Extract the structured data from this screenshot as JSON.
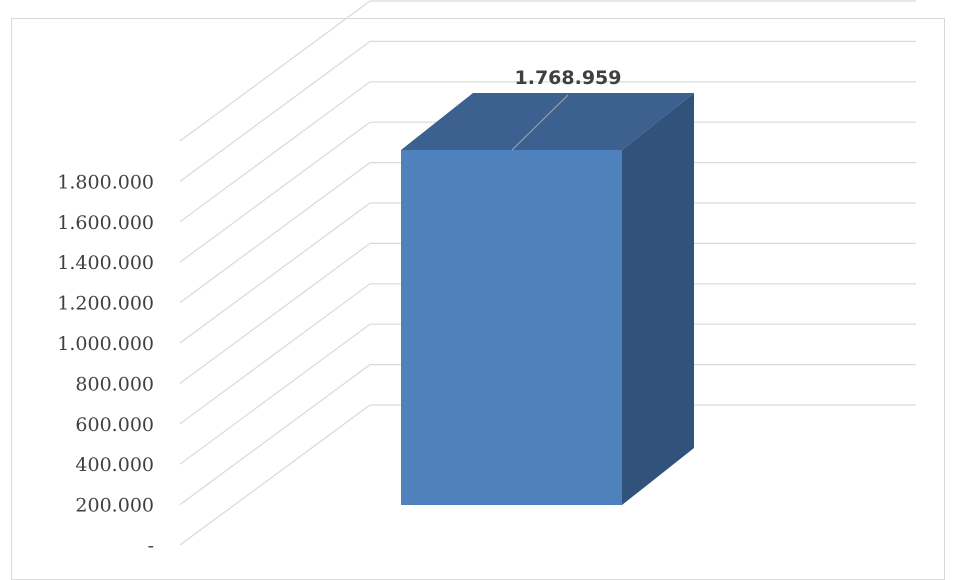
{
  "chart_data": {
    "type": "bar",
    "title": "",
    "xlabel": "",
    "ylabel": "",
    "categories": [
      ""
    ],
    "values": [
      1768959
    ],
    "data_labels": [
      "1.768.959"
    ],
    "ylim": [
      0,
      1800000
    ],
    "yticks": [
      0,
      200000,
      400000,
      600000,
      800000,
      1000000,
      1200000,
      1400000,
      1600000,
      1800000
    ],
    "ytick_labels": [
      "-",
      "200.000",
      "400.000",
      "600.000",
      "800.000",
      "1.000.000",
      "1.200.000",
      "1.400.000",
      "1.600.000",
      "1.800.000"
    ],
    "style": "3d-column",
    "grid": true,
    "legend": "none",
    "colors": {
      "front": "#4f81bd",
      "side": "#31527a",
      "top": "#3c6190",
      "grid": "#d9d9d9",
      "text": "#404040"
    }
  }
}
